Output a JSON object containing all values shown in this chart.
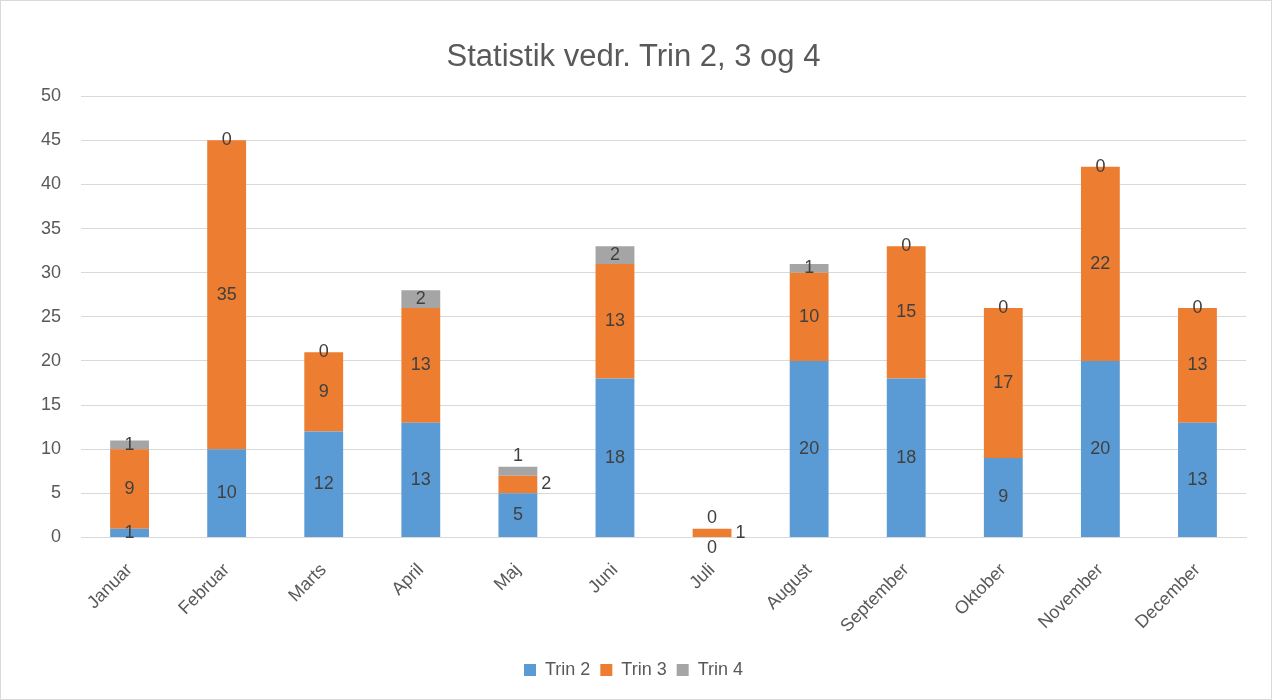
{
  "chart_data": {
    "type": "bar",
    "title": "Statistik vedr. Trin 2, 3 og 4",
    "stacked": true,
    "categories": [
      "Januar",
      "Februar",
      "Marts",
      "April",
      "Maj",
      "Juni",
      "Juli",
      "August",
      "September",
      "Oktober",
      "November",
      "December"
    ],
    "series": [
      {
        "name": "Trin 2",
        "color": "#5b9bd5",
        "values": [
          1,
          10,
          12,
          13,
          5,
          18,
          0,
          20,
          18,
          9,
          20,
          13
        ]
      },
      {
        "name": "Trin 3",
        "color": "#ed7d31",
        "values": [
          9,
          35,
          9,
          13,
          2,
          13,
          1,
          10,
          15,
          17,
          22,
          13
        ]
      },
      {
        "name": "Trin 4",
        "color": "#a5a5a5",
        "values": [
          1,
          0,
          0,
          2,
          1,
          2,
          0,
          1,
          0,
          0,
          0,
          0
        ]
      }
    ],
    "ylim": [
      0,
      50
    ],
    "yticks": [
      0,
      5,
      10,
      15,
      20,
      25,
      30,
      35,
      40,
      45,
      50
    ],
    "grid": "y",
    "legend": "bottom",
    "data_labels": true
  }
}
